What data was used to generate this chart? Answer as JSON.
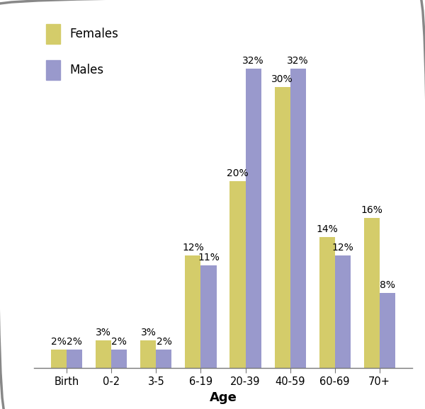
{
  "categories": [
    "Birth",
    "0-2",
    "3-5",
    "6-19",
    "20-39",
    "40-59",
    "60-69",
    "70+"
  ],
  "females": [
    2,
    3,
    3,
    12,
    20,
    30,
    14,
    16
  ],
  "males": [
    2,
    2,
    2,
    11,
    32,
    32,
    12,
    8
  ],
  "female_color": "#d4cc6a",
  "male_color": "#9999cc",
  "bar_width": 0.35,
  "xlabel": "Age",
  "ylim": [
    0,
    38
  ],
  "legend_females": "Females",
  "legend_males": "Males",
  "background_color": "#ffffff",
  "label_fontsize": 10,
  "tick_fontsize": 10.5,
  "legend_fontsize": 12,
  "axis_label_fontsize": 13,
  "border_color": "#888888",
  "spine_color": "#777777"
}
